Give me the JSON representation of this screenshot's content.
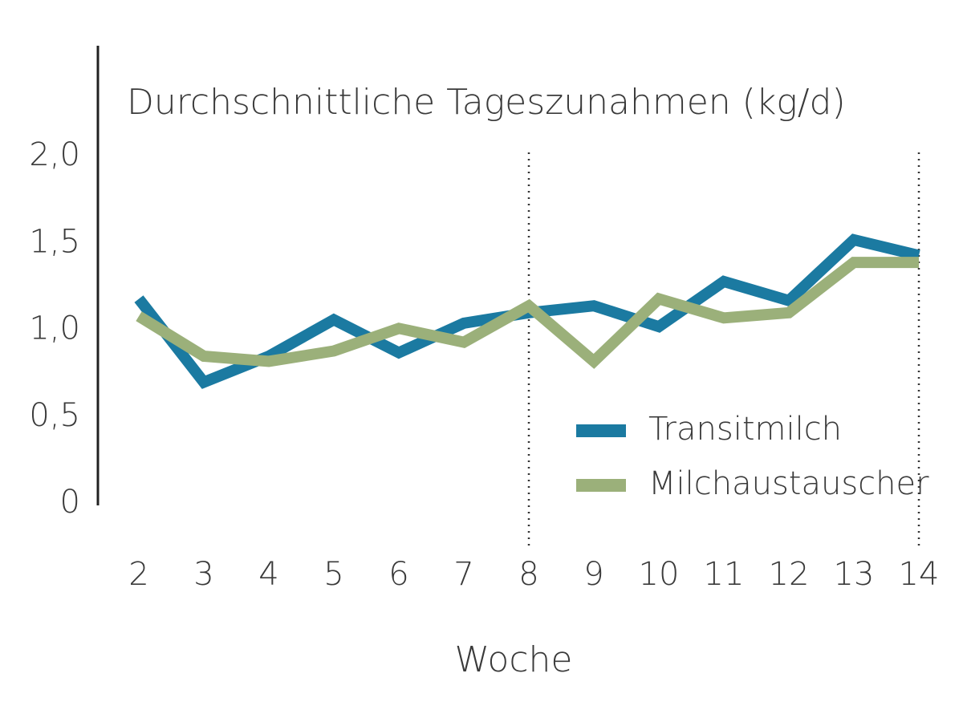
{
  "chart_data": {
    "type": "line",
    "title": "Durchschnittliche Tageszunahmen (kg/d)",
    "x_label": "Woche",
    "x": [
      2,
      3,
      4,
      5,
      6,
      7,
      8,
      9,
      10,
      11,
      12,
      13,
      14
    ],
    "series": [
      {
        "name": "Transitmilch",
        "color": "#1b7aa1",
        "values": [
          1.18,
          0.7,
          0.85,
          1.06,
          0.87,
          1.04,
          1.1,
          1.14,
          1.02,
          1.28,
          1.17,
          1.52,
          1.43
        ]
      },
      {
        "name": "Milchaustauscher",
        "color": "#9bb07a",
        "values": [
          1.08,
          0.85,
          0.82,
          0.88,
          1.01,
          0.93,
          1.14,
          0.82,
          1.18,
          1.07,
          1.1,
          1.39,
          1.39
        ]
      }
    ],
    "xlim": [
      2,
      14
    ],
    "xticks": [
      2,
      3,
      4,
      5,
      6,
      7,
      8,
      9,
      10,
      11,
      12,
      13,
      14
    ],
    "ylim": [
      0,
      2.65
    ],
    "yticks": [
      0,
      {
        "value": 0.5,
        "label": "0,5"
      },
      {
        "value": 1,
        "label": "1,0"
      },
      {
        "value": 1.5,
        "label": "1,5"
      },
      {
        "value": 2,
        "label": "2,0"
      }
    ],
    "vlines": [
      8,
      14
    ],
    "legend": "lower right"
  }
}
